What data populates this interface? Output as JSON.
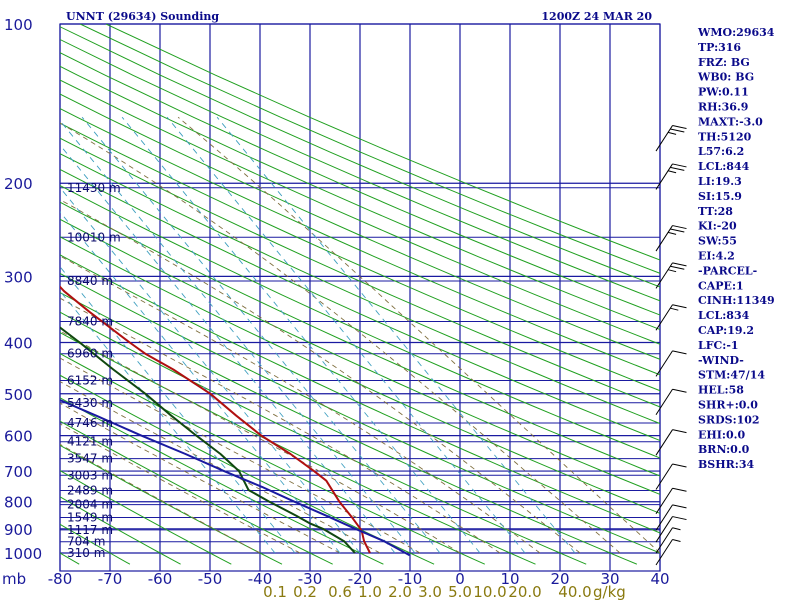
{
  "header": {
    "title": "UNNT (29634) Sounding",
    "valid_time": "1200Z 24 MAR 20"
  },
  "indices": [
    "WMO:29634",
    "TP:316",
    "FRZ: BG",
    "WB0: BG",
    "PW:0.11",
    "RH:36.9",
    "MAXT:-3.0",
    "TH:5120",
    "L57:6.2",
    "LCL:844",
    "LI:19.3",
    "SI:15.9",
    "TT:28",
    "KI:-20",
    "SW:55",
    "EI:4.2",
    "-PARCEL-",
    "CAPE:1",
    "CINH:11349",
    "LCL:834",
    "CAP:19.2",
    "LFC:-1",
    "-WIND-",
    "STM:47/14",
    "HEL:58",
    "SHR+:0.0",
    "SRDS:102",
    "EHI:0.0",
    "BRN:0.0",
    "BSHR:34"
  ],
  "colors": {
    "grid": "#1a1aa0",
    "isotherm": "#1a1aa0",
    "dry_adiabat": "#20a020",
    "moist_adiabat": "#807040",
    "mixing_ratio": "#40a0c0",
    "temperature": "#b01010",
    "dewpoint": "#104810",
    "parcel": "#1a1aa0",
    "text": "#0a0a8a"
  },
  "chart_data": {
    "type": "line",
    "title": "UNNT (29634) Sounding",
    "x_axis_label": "mb",
    "pressure_levels": [
      100,
      200,
      300,
      400,
      500,
      600,
      700,
      800,
      900,
      1000
    ],
    "temp_ticks": [
      -80,
      -70,
      -60,
      -50,
      -40,
      -30,
      -20,
      -10,
      0,
      10,
      20,
      30,
      40
    ],
    "xlim": [
      -80,
      40
    ],
    "ylim": [
      1000,
      100
    ],
    "height_labels": [
      {
        "p": 204,
        "label": "11430 m"
      },
      {
        "p": 253,
        "label": "10010 m"
      },
      {
        "p": 306,
        "label": "8840 m"
      },
      {
        "p": 365,
        "label": "7840 m"
      },
      {
        "p": 420,
        "label": "6960 m"
      },
      {
        "p": 472,
        "label": "6152 m"
      },
      {
        "p": 520,
        "label": "5430 m"
      },
      {
        "p": 568,
        "label": "4746 m"
      },
      {
        "p": 616,
        "label": "4121 m"
      },
      {
        "p": 663,
        "label": "3547 m"
      },
      {
        "p": 713,
        "label": "3003 m"
      },
      {
        "p": 762,
        "label": "2489 m"
      },
      {
        "p": 810,
        "label": "2004 m"
      },
      {
        "p": 857,
        "label": "1549 m"
      },
      {
        "p": 904,
        "label": "1117 m"
      },
      {
        "p": 952,
        "label": "704 m"
      },
      {
        "p": 1000,
        "label": "310 m"
      }
    ],
    "mixing_ratio_labels": [
      {
        "w": "0.1",
        "t": -37
      },
      {
        "w": "0.2",
        "t": -33
      },
      {
        "w": "0.6",
        "t": -24
      },
      {
        "w": "1.0",
        "t": -20
      },
      {
        "w": "2.0",
        "t": -13
      },
      {
        "w": "3.0",
        "t": -9
      },
      {
        "w": "5.0",
        "t": -4
      },
      {
        "w": "10.0",
        "t": 4
      },
      {
        "w": "20.0",
        "t": 13
      },
      {
        "w": "40.0",
        "t": 23
      }
    ],
    "mixing_ratio_unit": "g/kg",
    "series": [
      {
        "key": "temperature",
        "values": [
          {
            "p": 1000,
            "t": -18
          },
          {
            "p": 950,
            "t": -18
          },
          {
            "p": 912,
            "t": -17.5
          },
          {
            "p": 900,
            "t": -17.5
          },
          {
            "p": 860,
            "t": -18
          },
          {
            "p": 800,
            "t": -19
          },
          {
            "p": 730,
            "t": -19.5
          },
          {
            "p": 700,
            "t": -21
          },
          {
            "p": 650,
            "t": -24
          },
          {
            "p": 600,
            "t": -28
          },
          {
            "p": 550,
            "t": -31
          },
          {
            "p": 500,
            "t": -34
          },
          {
            "p": 450,
            "t": -39
          },
          {
            "p": 420,
            "t": -43
          },
          {
            "p": 400,
            "t": -45
          },
          {
            "p": 350,
            "t": -50
          },
          {
            "p": 320,
            "t": -53
          },
          {
            "p": 290,
            "t": -55
          },
          {
            "p": 250,
            "t": -58
          },
          {
            "p": 200,
            "t": -61
          },
          {
            "p": 170,
            "t": -64
          }
        ]
      },
      {
        "key": "dewpoint",
        "values": [
          {
            "p": 1000,
            "t": -21
          },
          {
            "p": 950,
            "t": -22
          },
          {
            "p": 900,
            "t": -25
          },
          {
            "p": 880,
            "t": -27
          },
          {
            "p": 850,
            "t": -29
          },
          {
            "p": 800,
            "t": -33
          },
          {
            "p": 760,
            "t": -36
          },
          {
            "p": 740,
            "t": -36
          },
          {
            "p": 700,
            "t": -36
          },
          {
            "p": 650,
            "t": -38
          },
          {
            "p": 600,
            "t": -41
          },
          {
            "p": 550,
            "t": -44
          },
          {
            "p": 500,
            "t": -47
          },
          {
            "p": 450,
            "t": -51
          },
          {
            "p": 400,
            "t": -55
          },
          {
            "p": 350,
            "t": -60
          },
          {
            "p": 310,
            "t": -63
          },
          {
            "p": 280,
            "t": -63
          },
          {
            "p": 250,
            "t": -64
          },
          {
            "p": 220,
            "t": -65
          },
          {
            "p": 190,
            "t": -68
          },
          {
            "p": 170,
            "t": -70
          }
        ]
      },
      {
        "key": "parcel",
        "values": [
          {
            "p": 1010,
            "t": -10.3
          },
          {
            "p": 950,
            "t": -14
          },
          {
            "p": 900,
            "t": -18.5
          },
          {
            "p": 850,
            "t": -23
          },
          {
            "p": 800,
            "t": -28
          },
          {
            "p": 750,
            "t": -33
          },
          {
            "p": 700,
            "t": -39
          },
          {
            "p": 650,
            "t": -45
          },
          {
            "p": 600,
            "t": -52
          },
          {
            "p": 550,
            "t": -59
          },
          {
            "p": 500,
            "t": -67
          },
          {
            "p": 450,
            "t": -75
          },
          {
            "p": 400,
            "t": -84
          },
          {
            "p": 350,
            "t": -94
          },
          {
            "p": 320,
            "t": -100
          }
        ]
      }
    ],
    "wind_barbs": [
      {
        "p": 165,
        "barbs": 2,
        "half": 1
      },
      {
        "p": 195,
        "barbs": 2,
        "half": 1
      },
      {
        "p": 255,
        "barbs": 2,
        "half": 1
      },
      {
        "p": 300,
        "barbs": 2,
        "half": 1
      },
      {
        "p": 360,
        "barbs": 1,
        "half": 1
      },
      {
        "p": 440,
        "barbs": 1,
        "half": 0
      },
      {
        "p": 520,
        "barbs": 1,
        "half": 0
      },
      {
        "p": 620,
        "barbs": 1,
        "half": 0
      },
      {
        "p": 720,
        "barbs": 1,
        "half": 0
      },
      {
        "p": 800,
        "barbs": 1,
        "half": 0
      },
      {
        "p": 860,
        "barbs": 1,
        "half": 0
      },
      {
        "p": 905,
        "barbs": 1,
        "half": 0
      },
      {
        "p": 950,
        "barbs": 0,
        "half": 1
      },
      {
        "p": 1000,
        "barbs": 0,
        "half": 1
      }
    ]
  }
}
